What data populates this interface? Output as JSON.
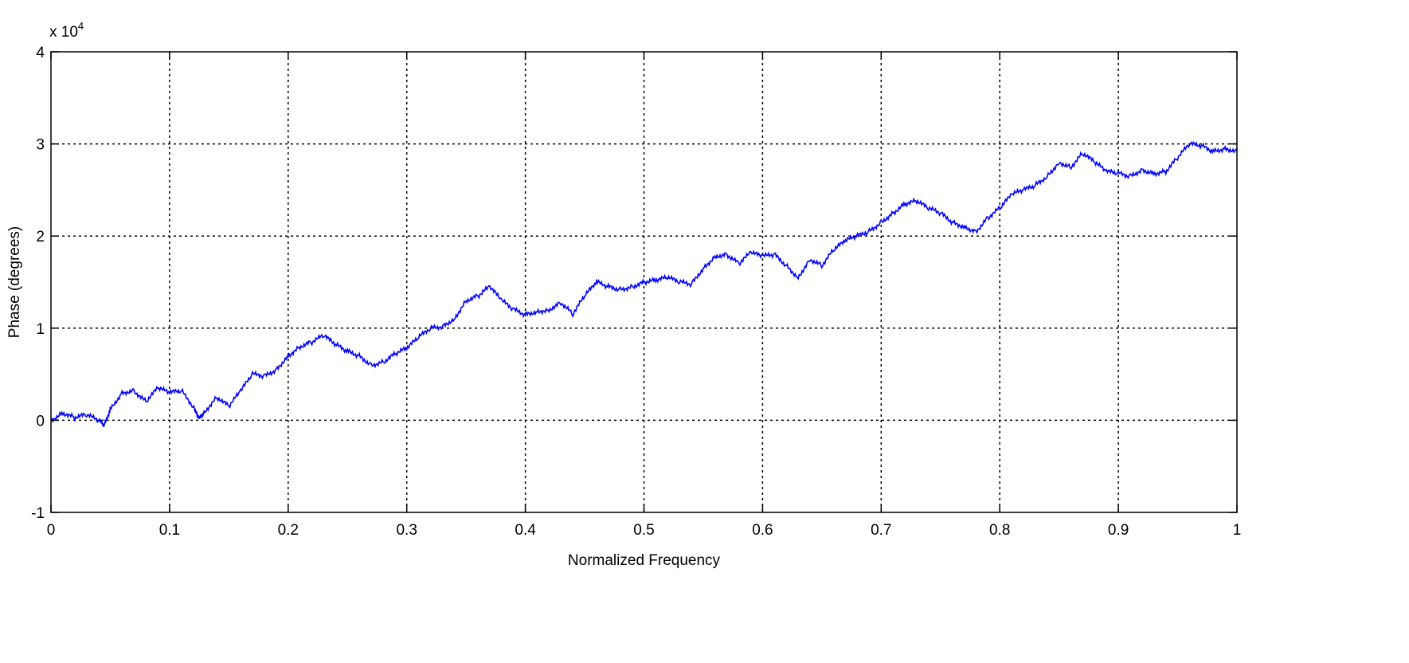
{
  "chart_data": {
    "type": "line",
    "title": "",
    "xlabel": "Normalized Frequency",
    "ylabel": "Phase (degrees)",
    "y_exponent_label": "x 10",
    "y_exponent_power": "4",
    "xlim": [
      0,
      1
    ],
    "ylim": [
      -1,
      4
    ],
    "xticks": [
      0,
      0.1,
      0.2,
      0.3,
      0.4,
      0.5,
      0.6,
      0.7,
      0.8,
      0.9,
      1
    ],
    "xtick_labels": [
      "0",
      "0.1",
      "0.2",
      "0.3",
      "0.4",
      "0.5",
      "0.6",
      "0.7",
      "0.8",
      "0.9",
      "1"
    ],
    "yticks": [
      -1,
      0,
      1,
      2,
      3,
      4
    ],
    "ytick_labels": [
      "-1",
      "0",
      "1",
      "2",
      "3",
      "4"
    ],
    "grid": true,
    "legend": "none",
    "series": [
      {
        "color": "#0000ff",
        "x": [
          0.0,
          0.01,
          0.02,
          0.03,
          0.04,
          0.045,
          0.05,
          0.06,
          0.07,
          0.08,
          0.09,
          0.1,
          0.11,
          0.12,
          0.125,
          0.13,
          0.14,
          0.15,
          0.16,
          0.17,
          0.18,
          0.19,
          0.2,
          0.21,
          0.22,
          0.23,
          0.24,
          0.25,
          0.26,
          0.27,
          0.28,
          0.29,
          0.3,
          0.31,
          0.32,
          0.33,
          0.34,
          0.35,
          0.36,
          0.37,
          0.38,
          0.39,
          0.4,
          0.41,
          0.42,
          0.43,
          0.44,
          0.45,
          0.46,
          0.47,
          0.48,
          0.49,
          0.5,
          0.51,
          0.52,
          0.53,
          0.54,
          0.55,
          0.56,
          0.57,
          0.58,
          0.59,
          0.6,
          0.61,
          0.62,
          0.63,
          0.64,
          0.65,
          0.66,
          0.67,
          0.68,
          0.69,
          0.7,
          0.71,
          0.72,
          0.73,
          0.74,
          0.75,
          0.76,
          0.77,
          0.78,
          0.79,
          0.8,
          0.81,
          0.82,
          0.83,
          0.84,
          0.85,
          0.86,
          0.87,
          0.88,
          0.89,
          0.9,
          0.91,
          0.92,
          0.93,
          0.94,
          0.95,
          0.96,
          0.97,
          0.98,
          0.99,
          1.0
        ],
        "y": [
          0.0,
          0.08,
          0.03,
          0.06,
          0.0,
          -0.05,
          0.12,
          0.3,
          0.32,
          0.2,
          0.35,
          0.3,
          0.32,
          0.15,
          0.03,
          0.1,
          0.25,
          0.15,
          0.32,
          0.5,
          0.48,
          0.55,
          0.7,
          0.8,
          0.85,
          0.92,
          0.82,
          0.75,
          0.7,
          0.6,
          0.63,
          0.72,
          0.78,
          0.9,
          1.0,
          1.02,
          1.1,
          1.3,
          1.35,
          1.45,
          1.3,
          1.2,
          1.15,
          1.18,
          1.2,
          1.28,
          1.15,
          1.35,
          1.5,
          1.45,
          1.42,
          1.45,
          1.5,
          1.52,
          1.55,
          1.5,
          1.48,
          1.65,
          1.78,
          1.8,
          1.7,
          1.82,
          1.78,
          1.8,
          1.68,
          1.55,
          1.75,
          1.68,
          1.85,
          1.95,
          2.0,
          2.05,
          2.15,
          2.25,
          2.35,
          2.38,
          2.3,
          2.25,
          2.15,
          2.1,
          2.05,
          2.2,
          2.3,
          2.45,
          2.5,
          2.55,
          2.65,
          2.8,
          2.75,
          2.9,
          2.8,
          2.7,
          2.68,
          2.65,
          2.72,
          2.68,
          2.7,
          2.85,
          3.0,
          2.98,
          2.92,
          2.95,
          2.92
        ]
      }
    ]
  }
}
